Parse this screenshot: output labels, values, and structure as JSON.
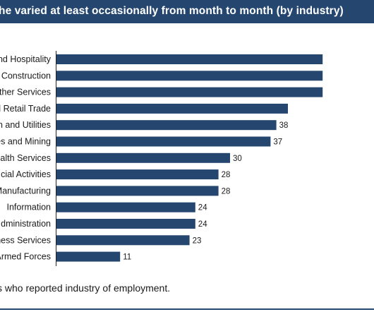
{
  "chart_data": {
    "type": "bar",
    "orientation": "horizontal",
    "title": "he varied at least occasionally from month to month (by industry)",
    "categories": [
      "and Hospitality",
      "Construction",
      "ther Services",
      "d Retail Trade",
      "n and Utilities",
      "es and Mining",
      "ealth Services",
      "cial Activities",
      "Manufacturing",
      "Information",
      "dministration",
      "ness Services",
      "Armed Forces"
    ],
    "values": [
      null,
      null,
      null,
      null,
      38,
      37,
      30,
      28,
      28,
      24,
      24,
      23,
      11
    ],
    "estimated_values": [
      46,
      46,
      46,
      40,
      38,
      37,
      30,
      28,
      28,
      24,
      24,
      23,
      11
    ],
    "value_labels": [
      "",
      "",
      "",
      "",
      "38",
      "37",
      "30",
      "28",
      "28",
      "24",
      "24",
      "23",
      "11"
    ],
    "bar_color": "#24466f",
    "xlabel": "",
    "ylabel": "",
    "grid": false
  },
  "footnote": "s who reported industry of employment.",
  "colors": {
    "header_bg": "#24466f",
    "bar": "#24466f",
    "text": "#1a1a1a"
  }
}
